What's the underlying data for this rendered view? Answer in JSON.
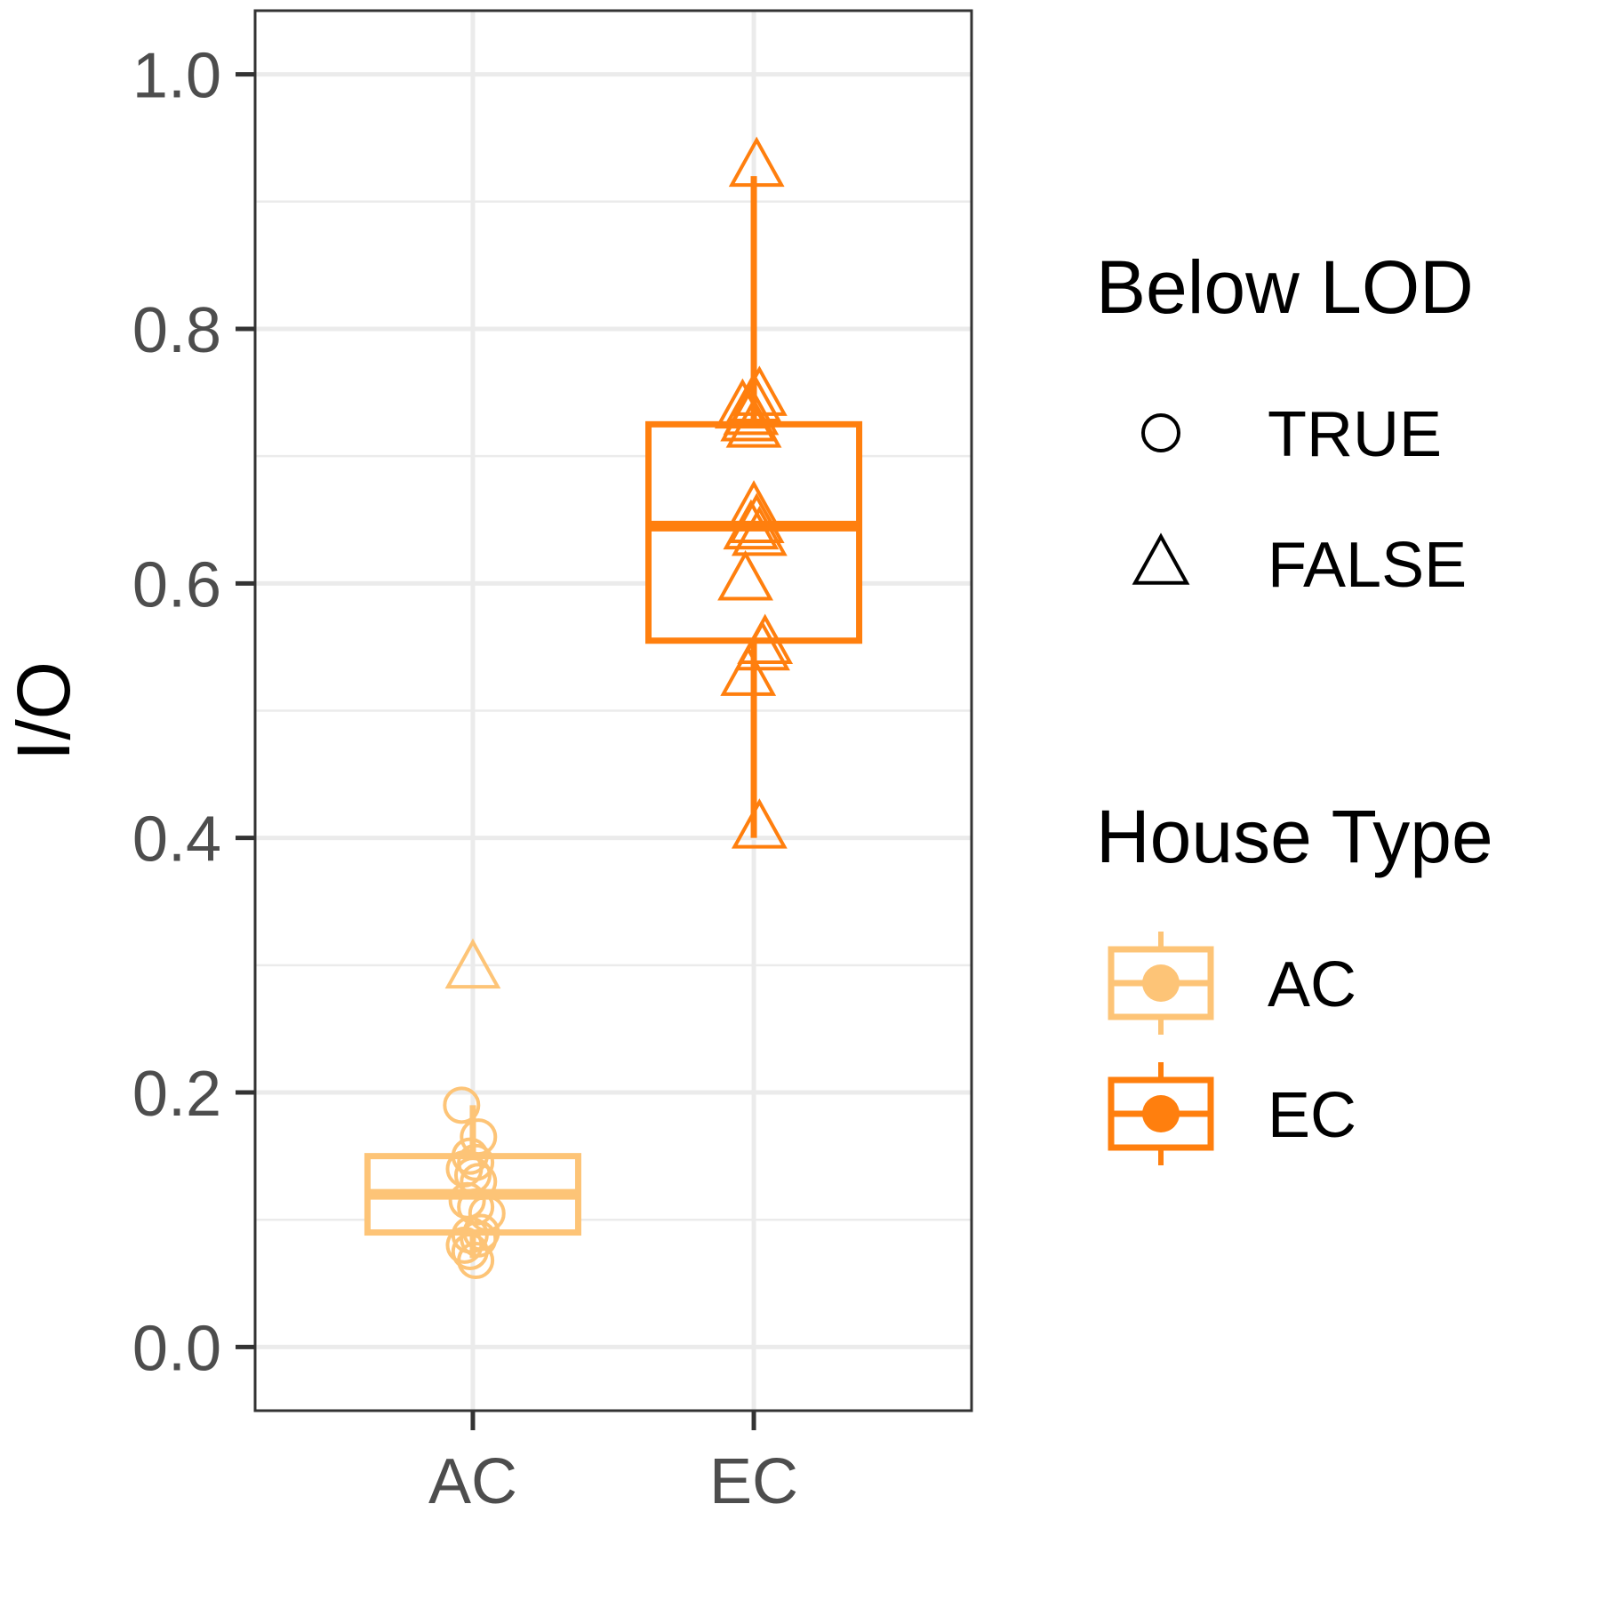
{
  "chart_data": {
    "type": "box",
    "title": "",
    "xlabel": "",
    "ylabel": "I/O",
    "ylim": [
      -0.05,
      1.05
    ],
    "yticks": [
      0.0,
      0.2,
      0.4,
      0.6,
      0.8,
      1.0
    ],
    "ytick_labels": [
      "0.0",
      "0.2",
      "0.4",
      "0.6",
      "0.8",
      "1.0"
    ],
    "categories": [
      "AC",
      "EC"
    ],
    "grid": true,
    "legend_position": "right",
    "boxes": [
      {
        "category": "AC",
        "color": "#fdc477",
        "whisker_low": 0.07,
        "q1": 0.09,
        "median": 0.12,
        "q3": 0.15,
        "whisker_high": 0.19
      },
      {
        "category": "EC",
        "color": "#ff7f0e",
        "whisker_low": 0.4,
        "q1": 0.555,
        "median": 0.645,
        "q3": 0.725,
        "whisker_high": 0.92
      }
    ],
    "points": [
      {
        "category": "AC",
        "below_lod": true,
        "y": 0.19,
        "jitter": -0.04
      },
      {
        "category": "AC",
        "below_lod": true,
        "y": 0.165,
        "jitter": 0.02
      },
      {
        "category": "AC",
        "below_lod": true,
        "y": 0.15,
        "jitter": -0.01
      },
      {
        "category": "AC",
        "below_lod": true,
        "y": 0.145,
        "jitter": 0.01
      },
      {
        "category": "AC",
        "below_lod": true,
        "y": 0.14,
        "jitter": -0.03
      },
      {
        "category": "AC",
        "below_lod": true,
        "y": 0.135,
        "jitter": 0.0
      },
      {
        "category": "AC",
        "below_lod": true,
        "y": 0.13,
        "jitter": 0.02
      },
      {
        "category": "AC",
        "below_lod": true,
        "y": 0.115,
        "jitter": -0.02
      },
      {
        "category": "AC",
        "below_lod": true,
        "y": 0.11,
        "jitter": 0.01
      },
      {
        "category": "AC",
        "below_lod": true,
        "y": 0.105,
        "jitter": 0.05
      },
      {
        "category": "AC",
        "below_lod": true,
        "y": 0.09,
        "jitter": 0.03
      },
      {
        "category": "AC",
        "below_lod": true,
        "y": 0.088,
        "jitter": -0.01
      },
      {
        "category": "AC",
        "below_lod": true,
        "y": 0.085,
        "jitter": 0.02
      },
      {
        "category": "AC",
        "below_lod": true,
        "y": 0.08,
        "jitter": -0.03
      },
      {
        "category": "AC",
        "below_lod": true,
        "y": 0.075,
        "jitter": -0.01
      },
      {
        "category": "AC",
        "below_lod": true,
        "y": 0.068,
        "jitter": 0.01
      },
      {
        "category": "AC",
        "below_lod": false,
        "y": 0.295,
        "jitter": 0.0
      },
      {
        "category": "EC",
        "below_lod": false,
        "y": 0.925,
        "jitter": 0.01
      },
      {
        "category": "EC",
        "below_lod": false,
        "y": 0.745,
        "jitter": 0.02
      },
      {
        "category": "EC",
        "below_lod": false,
        "y": 0.74,
        "jitter": 0.0
      },
      {
        "category": "EC",
        "below_lod": false,
        "y": 0.735,
        "jitter": -0.04
      },
      {
        "category": "EC",
        "below_lod": false,
        "y": 0.73,
        "jitter": -0.01
      },
      {
        "category": "EC",
        "below_lod": false,
        "y": 0.725,
        "jitter": -0.02
      },
      {
        "category": "EC",
        "below_lod": false,
        "y": 0.72,
        "jitter": 0.0
      },
      {
        "category": "EC",
        "below_lod": false,
        "y": 0.655,
        "jitter": 0.0
      },
      {
        "category": "EC",
        "below_lod": false,
        "y": 0.645,
        "jitter": 0.01
      },
      {
        "category": "EC",
        "below_lod": false,
        "y": 0.64,
        "jitter": -0.01
      },
      {
        "category": "EC",
        "below_lod": false,
        "y": 0.635,
        "jitter": 0.02
      },
      {
        "category": "EC",
        "below_lod": false,
        "y": 0.6,
        "jitter": -0.03
      },
      {
        "category": "EC",
        "below_lod": false,
        "y": 0.55,
        "jitter": 0.04
      },
      {
        "category": "EC",
        "below_lod": false,
        "y": 0.545,
        "jitter": 0.03
      },
      {
        "category": "EC",
        "below_lod": false,
        "y": 0.525,
        "jitter": -0.02
      },
      {
        "category": "EC",
        "below_lod": false,
        "y": 0.405,
        "jitter": 0.02
      }
    ],
    "legends": [
      {
        "title": "Below LOD",
        "entries": [
          {
            "label": "TRUE",
            "shape": "circle"
          },
          {
            "label": "FALSE",
            "shape": "triangle"
          }
        ]
      },
      {
        "title": "House Type",
        "entries": [
          {
            "label": "AC",
            "color": "#fdc477"
          },
          {
            "label": "EC",
            "color": "#ff7f0e"
          }
        ]
      }
    ]
  }
}
